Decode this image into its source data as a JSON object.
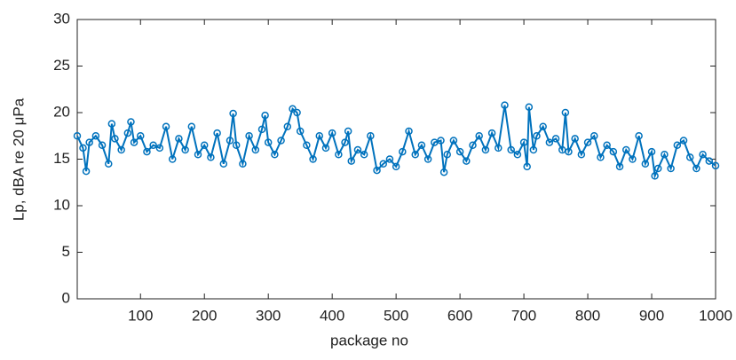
{
  "chart_data": {
    "type": "line",
    "xlabel": "package no",
    "ylabel": "Lp, dBA re 20 μPa",
    "x": [
      1,
      10,
      15,
      20,
      30,
      40,
      50,
      55,
      60,
      70,
      80,
      85,
      90,
      100,
      110,
      120,
      130,
      140,
      150,
      160,
      170,
      180,
      190,
      200,
      210,
      220,
      230,
      240,
      245,
      250,
      260,
      270,
      280,
      290,
      295,
      300,
      310,
      320,
      330,
      338,
      345,
      350,
      360,
      370,
      380,
      390,
      400,
      410,
      420,
      425,
      430,
      440,
      450,
      460,
      470,
      480,
      490,
      500,
      510,
      520,
      530,
      540,
      550,
      560,
      570,
      575,
      580,
      590,
      600,
      610,
      620,
      630,
      640,
      650,
      660,
      670,
      680,
      690,
      700,
      705,
      708,
      715,
      720,
      730,
      740,
      750,
      760,
      765,
      770,
      780,
      790,
      800,
      810,
      820,
      830,
      840,
      850,
      860,
      870,
      880,
      890,
      900,
      905,
      910,
      920,
      930,
      940,
      950,
      960,
      970,
      980,
      990,
      1000
    ],
    "series": [
      {
        "name": "Lp",
        "color": "#0072bd",
        "marker": "circle",
        "values": [
          17.5,
          16.2,
          13.7,
          16.8,
          17.5,
          16.5,
          14.5,
          18.8,
          17.2,
          16.0,
          17.8,
          19.0,
          16.8,
          17.5,
          15.8,
          16.5,
          16.2,
          18.5,
          15.0,
          17.2,
          16.0,
          18.5,
          15.5,
          16.5,
          15.2,
          17.8,
          14.5,
          17.0,
          19.9,
          16.5,
          14.5,
          17.5,
          16.0,
          18.2,
          19.7,
          16.8,
          15.5,
          17.0,
          18.5,
          20.4,
          20.0,
          18.0,
          16.5,
          15.0,
          17.5,
          16.2,
          17.8,
          15.5,
          16.8,
          18.0,
          14.8,
          16.0,
          15.5,
          17.5,
          13.8,
          14.5,
          15.0,
          14.2,
          15.8,
          18.0,
          15.5,
          16.5,
          15.0,
          16.8,
          17.0,
          13.6,
          15.5,
          17.0,
          15.8,
          14.8,
          16.5,
          17.5,
          16.0,
          17.8,
          16.2,
          20.8,
          16.0,
          15.5,
          16.8,
          14.2,
          20.6,
          16.0,
          17.5,
          18.5,
          16.8,
          17.2,
          16.0,
          20.0,
          15.8,
          17.2,
          15.5,
          16.8,
          17.5,
          15.2,
          16.5,
          15.8,
          14.2,
          16.0,
          15.0,
          17.5,
          14.5,
          15.8,
          13.2,
          14.0,
          15.5,
          14.0,
          16.5,
          17.0,
          15.2,
          14.0,
          15.5,
          14.8,
          14.3
        ]
      }
    ],
    "xlim": [
      1,
      1000
    ],
    "xticks": [
      100,
      200,
      300,
      400,
      500,
      600,
      700,
      800,
      900,
      1000
    ],
    "ylim": [
      0,
      30
    ],
    "yticks": [
      0,
      5,
      10,
      15,
      20,
      25,
      30
    ],
    "grid": false
  }
}
